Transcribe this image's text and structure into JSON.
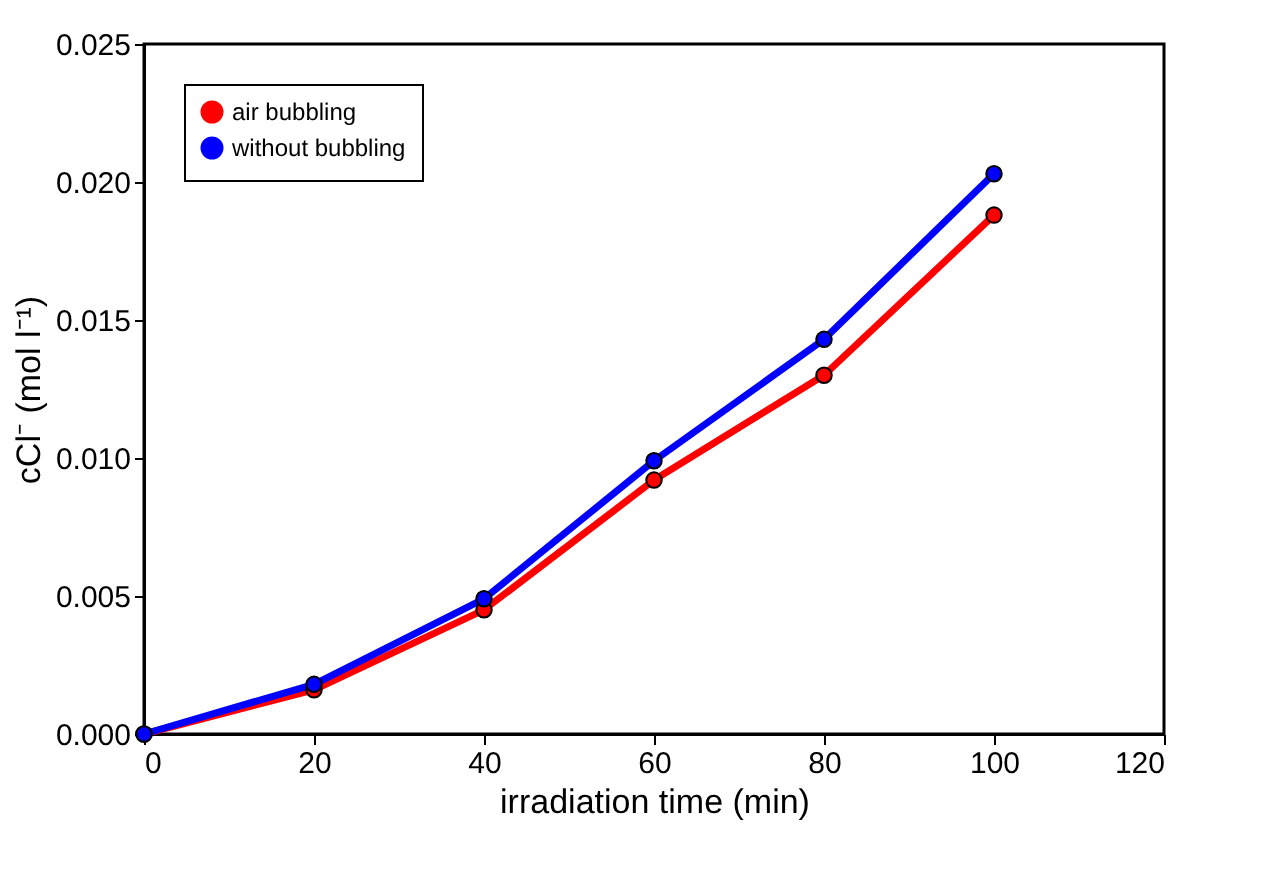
{
  "chart_data": {
    "type": "line",
    "xlabel": "irradiation time (min)",
    "ylabel": "cCl⁻ (mol l⁻¹)",
    "x": [
      0,
      20,
      40,
      60,
      80,
      100
    ],
    "series": [
      {
        "name": "air bubbling",
        "color": "#ff0000",
        "values": [
          0,
          0.0016,
          0.0045,
          0.0092,
          0.013,
          0.0188
        ]
      },
      {
        "name": "without bubbling",
        "color": "#0000ff",
        "values": [
          0,
          0.0018,
          0.0049,
          0.0099,
          0.0143,
          0.0203
        ]
      }
    ],
    "xlim": [
      0,
      120
    ],
    "xticks": [
      0,
      20,
      40,
      60,
      80,
      100,
      120
    ],
    "ylim": [
      0,
      0.025
    ],
    "yticks": [
      {
        "value": 0,
        "label": "0.000"
      },
      0.005,
      {
        "value": 0.01,
        "label": "0.010"
      },
      0.015,
      {
        "value": 0.02,
        "label": "0.020"
      },
      0.025
    ],
    "grid": false,
    "legend": "top left",
    "marker": "circle",
    "line_style": "solid"
  }
}
